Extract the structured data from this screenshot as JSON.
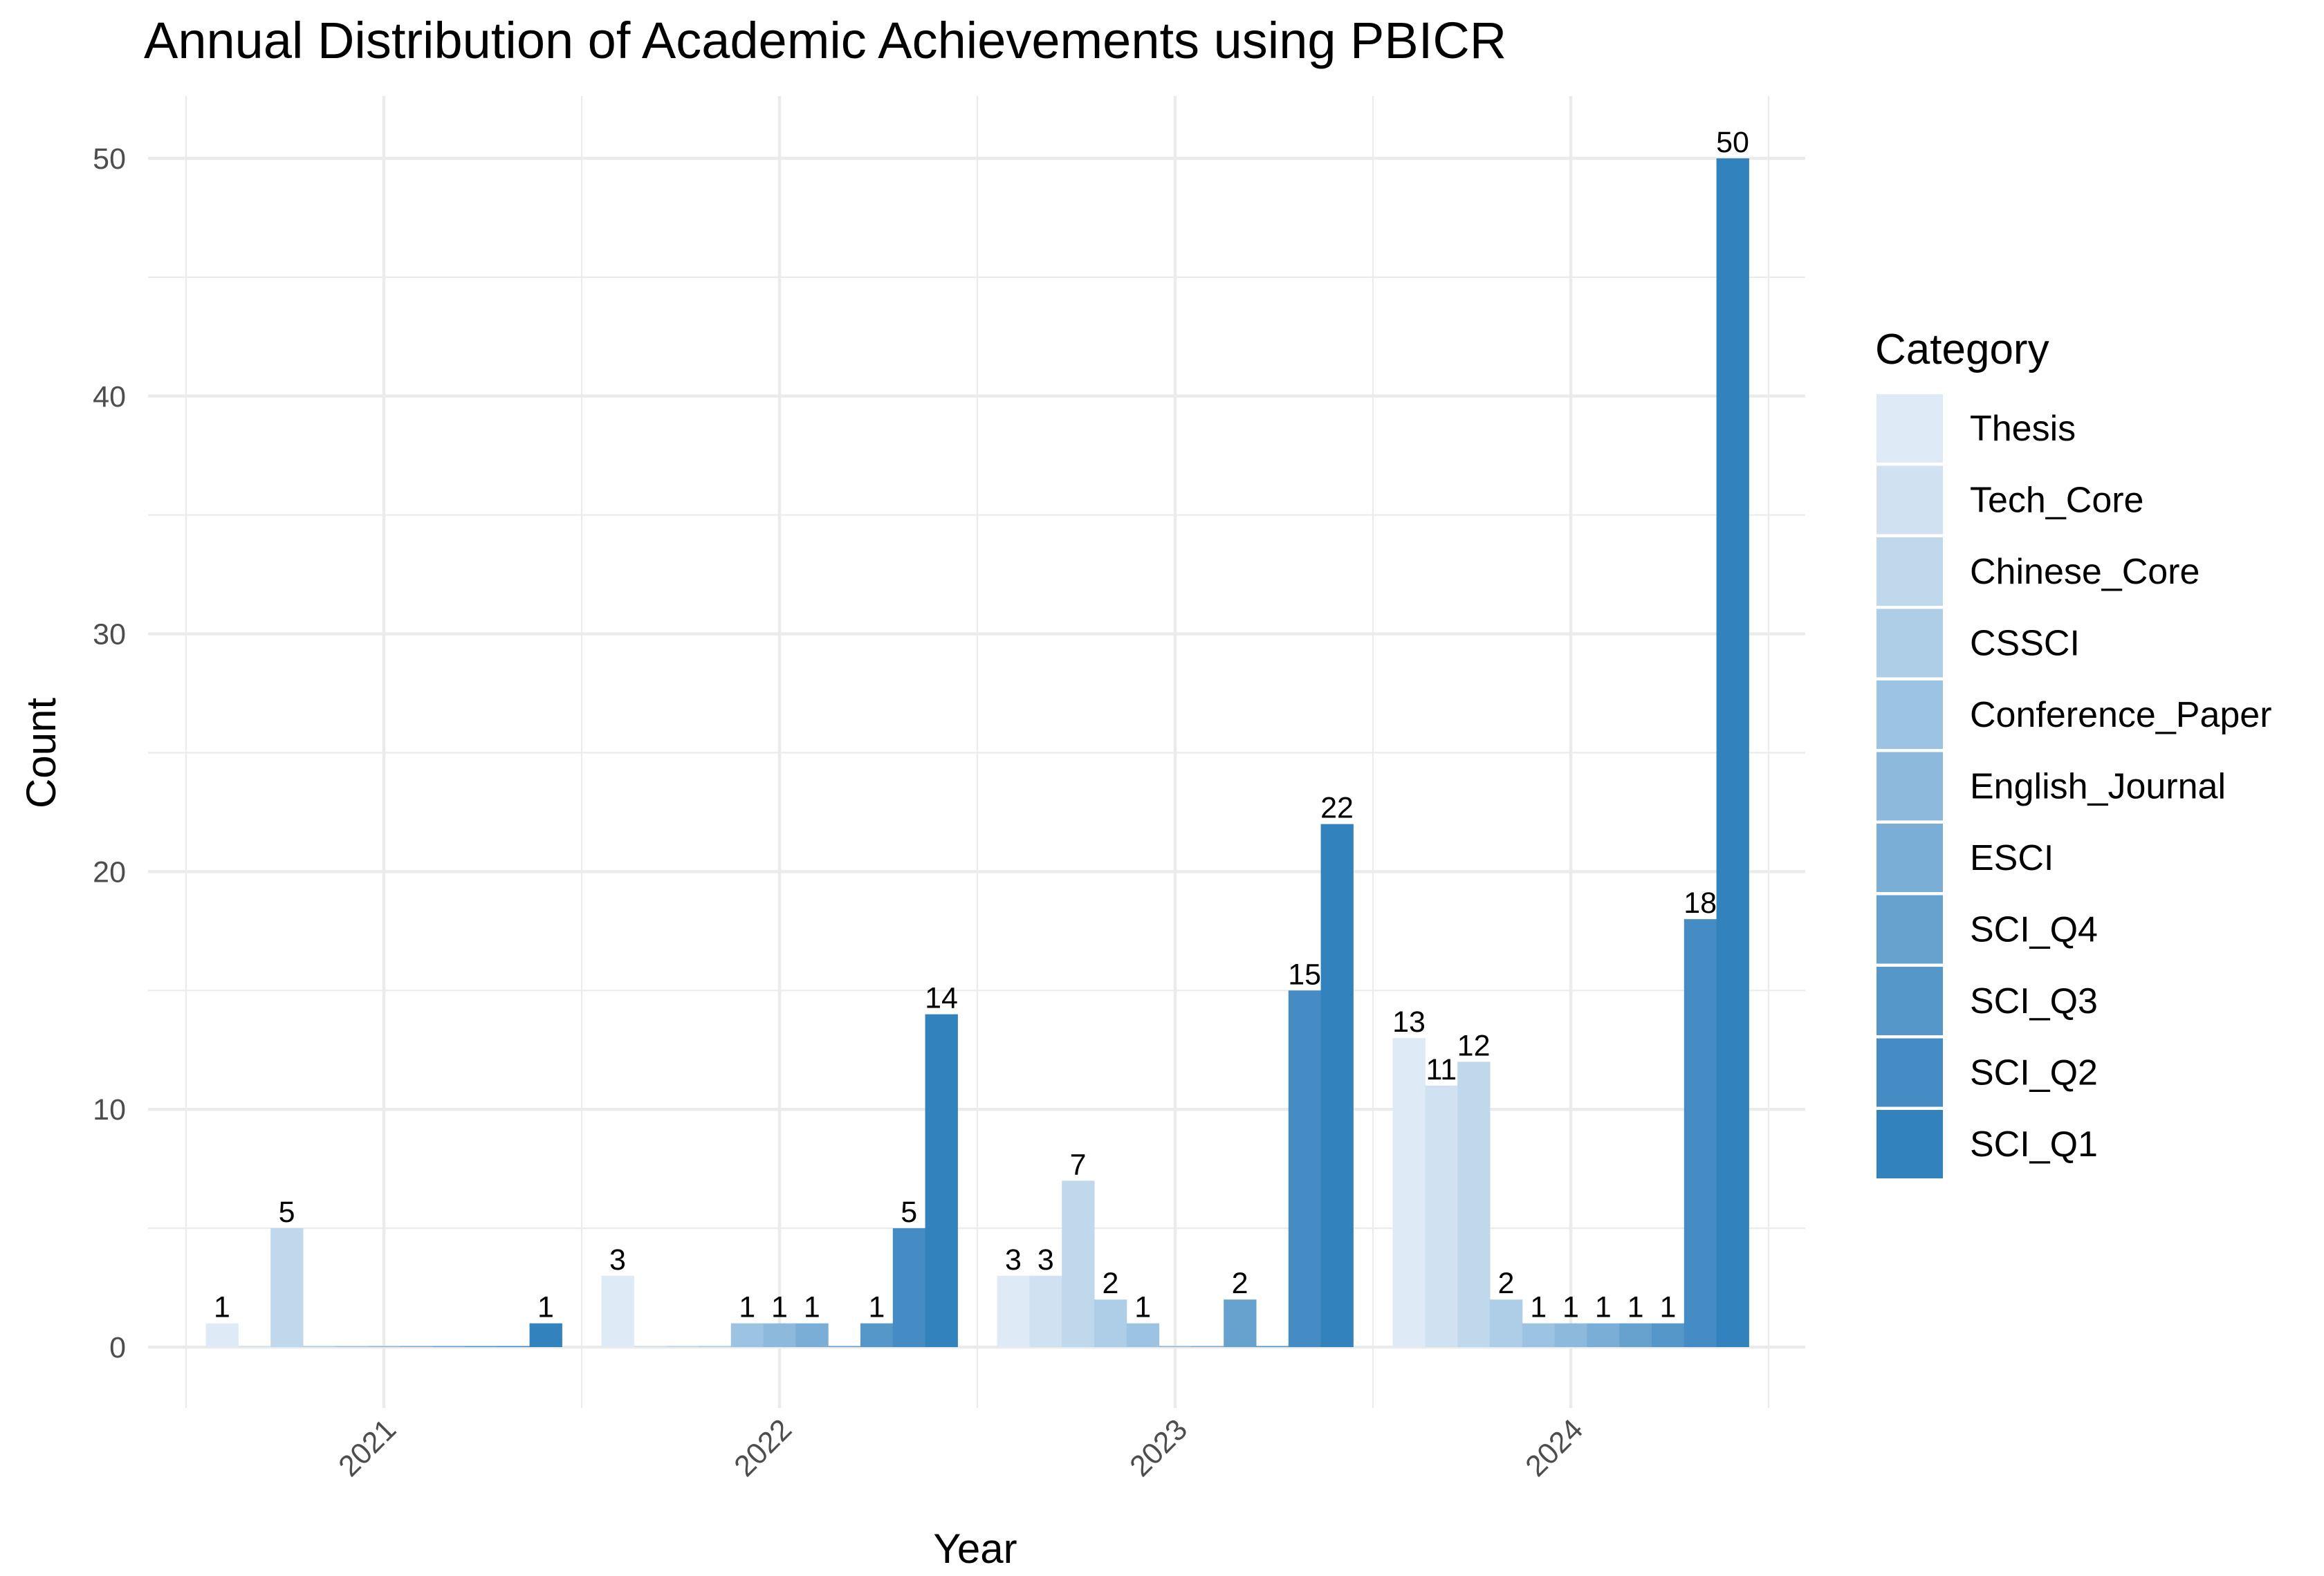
{
  "chart_data": {
    "type": "bar",
    "title": "Annual Distribution of Academic Achievements using PBICR",
    "xlabel": "Year",
    "ylabel": "Count",
    "ylim": [
      0,
      52
    ],
    "yticks": [
      0,
      10,
      20,
      30,
      40,
      50
    ],
    "categories": [
      "2021",
      "2022",
      "2023",
      "2024"
    ],
    "legend_title": "Category",
    "legend_position": "right",
    "grid": true,
    "series": [
      {
        "name": "Thesis",
        "color": "#deebf7",
        "values": [
          1,
          3,
          3,
          13
        ]
      },
      {
        "name": "Tech_Core",
        "color": "#d0e2f2",
        "values": [
          0,
          0,
          3,
          11
        ]
      },
      {
        "name": "Chinese_Core",
        "color": "#bfd8ec",
        "values": [
          5,
          0,
          7,
          12
        ]
      },
      {
        "name": "CSSCI",
        "color": "#aecde6",
        "values": [
          0,
          0,
          2,
          2
        ]
      },
      {
        "name": "Conference_Paper",
        "color": "#9cc3e1",
        "values": [
          0,
          1,
          1,
          1
        ]
      },
      {
        "name": "English_Journal",
        "color": "#8cb9dc",
        "values": [
          0,
          1,
          0,
          1
        ]
      },
      {
        "name": "ESCI",
        "color": "#7aaed6",
        "values": [
          0,
          1,
          0,
          1
        ]
      },
      {
        "name": "SCI_Q4",
        "color": "#67a2cf",
        "values": [
          0,
          0,
          2,
          1
        ]
      },
      {
        "name": "SCI_Q3",
        "color": "#5597c9",
        "values": [
          0,
          1,
          0,
          1
        ]
      },
      {
        "name": "SCI_Q2",
        "color": "#448cc3",
        "values": [
          0,
          5,
          15,
          18
        ]
      },
      {
        "name": "SCI_Q1",
        "color": "#3282be",
        "values": [
          1,
          14,
          22,
          50
        ]
      }
    ]
  }
}
